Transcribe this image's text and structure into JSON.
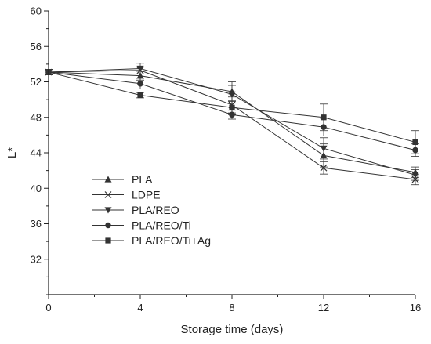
{
  "chart_data": {
    "type": "line",
    "xlabel": "Storage time (days)",
    "ylabel": "L*",
    "xlim": [
      0,
      16
    ],
    "ylim": [
      28,
      60
    ],
    "xticks": [
      0,
      4,
      8,
      12,
      16
    ],
    "yticks": [
      32,
      36,
      40,
      44,
      48,
      52,
      56,
      60
    ],
    "x": [
      0,
      4,
      8,
      12,
      16
    ],
    "grid": false,
    "legend_position": "lower-left",
    "line_color": "#333333",
    "series": [
      {
        "name": "PLA",
        "marker": "triangle-up",
        "values": [
          53.1,
          52.7,
          50.9,
          43.7,
          41.8
        ],
        "errors": [
          0.3,
          0.5,
          1.1,
          1.3,
          0.6
        ]
      },
      {
        "name": "LDPE",
        "marker": "x",
        "values": [
          53.1,
          53.3,
          49.4,
          42.3,
          41.0
        ],
        "errors": [
          0.3,
          0.4,
          0.9,
          0.7,
          0.6
        ]
      },
      {
        "name": "PLA/REO",
        "marker": "triangle-down",
        "values": [
          53.1,
          53.5,
          50.6,
          44.5,
          41.5
        ],
        "errors": [
          0.3,
          0.6,
          1.0,
          1.2,
          0.6
        ]
      },
      {
        "name": "PLA/REO/Ti",
        "marker": "circle",
        "values": [
          53.1,
          51.8,
          48.3,
          46.9,
          44.3
        ],
        "errors": [
          0.3,
          0.6,
          0.5,
          1.0,
          0.7
        ]
      },
      {
        "name": "PLA/REO/Ti+Ag",
        "marker": "square",
        "values": [
          53.1,
          50.5,
          49.1,
          48.0,
          45.2
        ],
        "errors": [
          0.3,
          0.3,
          0.8,
          1.5,
          1.3
        ]
      }
    ]
  }
}
